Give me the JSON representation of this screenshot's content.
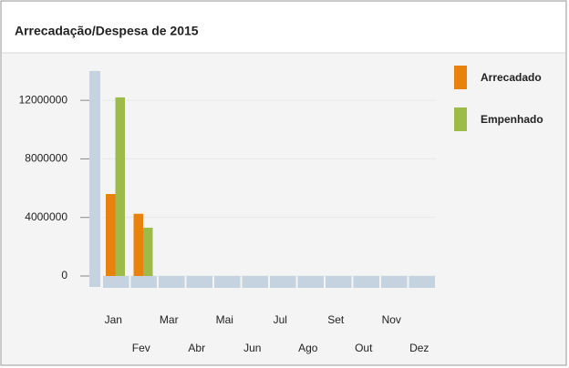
{
  "chart_data": {
    "type": "bar",
    "title": "Arrecadação/Despesa de 2015",
    "categories": [
      "Jan",
      "Fev",
      "Mar",
      "Abr",
      "Mai",
      "Jun",
      "Jul",
      "Ago",
      "Set",
      "Out",
      "Nov",
      "Dez"
    ],
    "series": [
      {
        "name": "Arrecadado",
        "color": "#e8820c",
        "values": [
          5600000,
          4250000,
          0,
          0,
          0,
          0,
          0,
          0,
          0,
          0,
          0,
          0
        ]
      },
      {
        "name": "Empenhado",
        "color": "#9cbb48",
        "values": [
          12200000,
          3300000,
          0,
          0,
          0,
          0,
          0,
          0,
          0,
          0,
          0,
          0
        ]
      }
    ],
    "ylim": [
      0,
      14000000
    ],
    "yticks": [
      0,
      4000000,
      8000000,
      12000000
    ],
    "grid": true,
    "legend": "right"
  }
}
